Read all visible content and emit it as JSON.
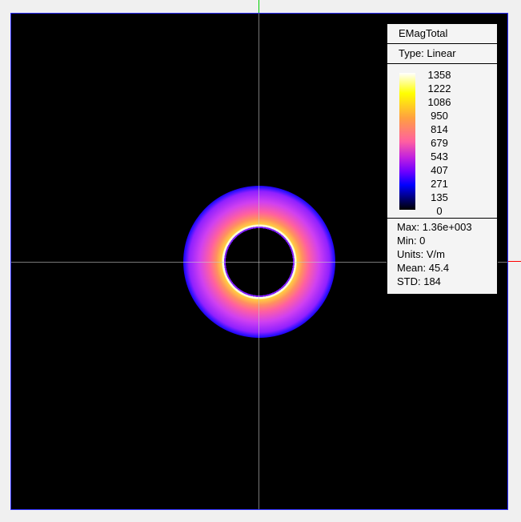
{
  "legend": {
    "title": "EMagTotal",
    "type": "Type: Linear",
    "ticks": [
      "1358",
      "1222",
      "1086",
      "950",
      "814",
      "679",
      "543",
      "407",
      "271",
      "135",
      "0"
    ],
    "stats": [
      "Max: 1.36e+003",
      "Min: 0",
      "Units: V/m",
      "Mean: 45.4",
      "STD: 184"
    ]
  },
  "colors": {
    "background": "#000000",
    "border": "#3030ff",
    "axis_y": "#00d000",
    "axis_x": "#ff0000"
  },
  "colormap": [
    "#000000",
    "#0000ff",
    "#7000ff",
    "#ff60a0",
    "#ffa040",
    "#ffff00",
    "#ffffff"
  ]
}
